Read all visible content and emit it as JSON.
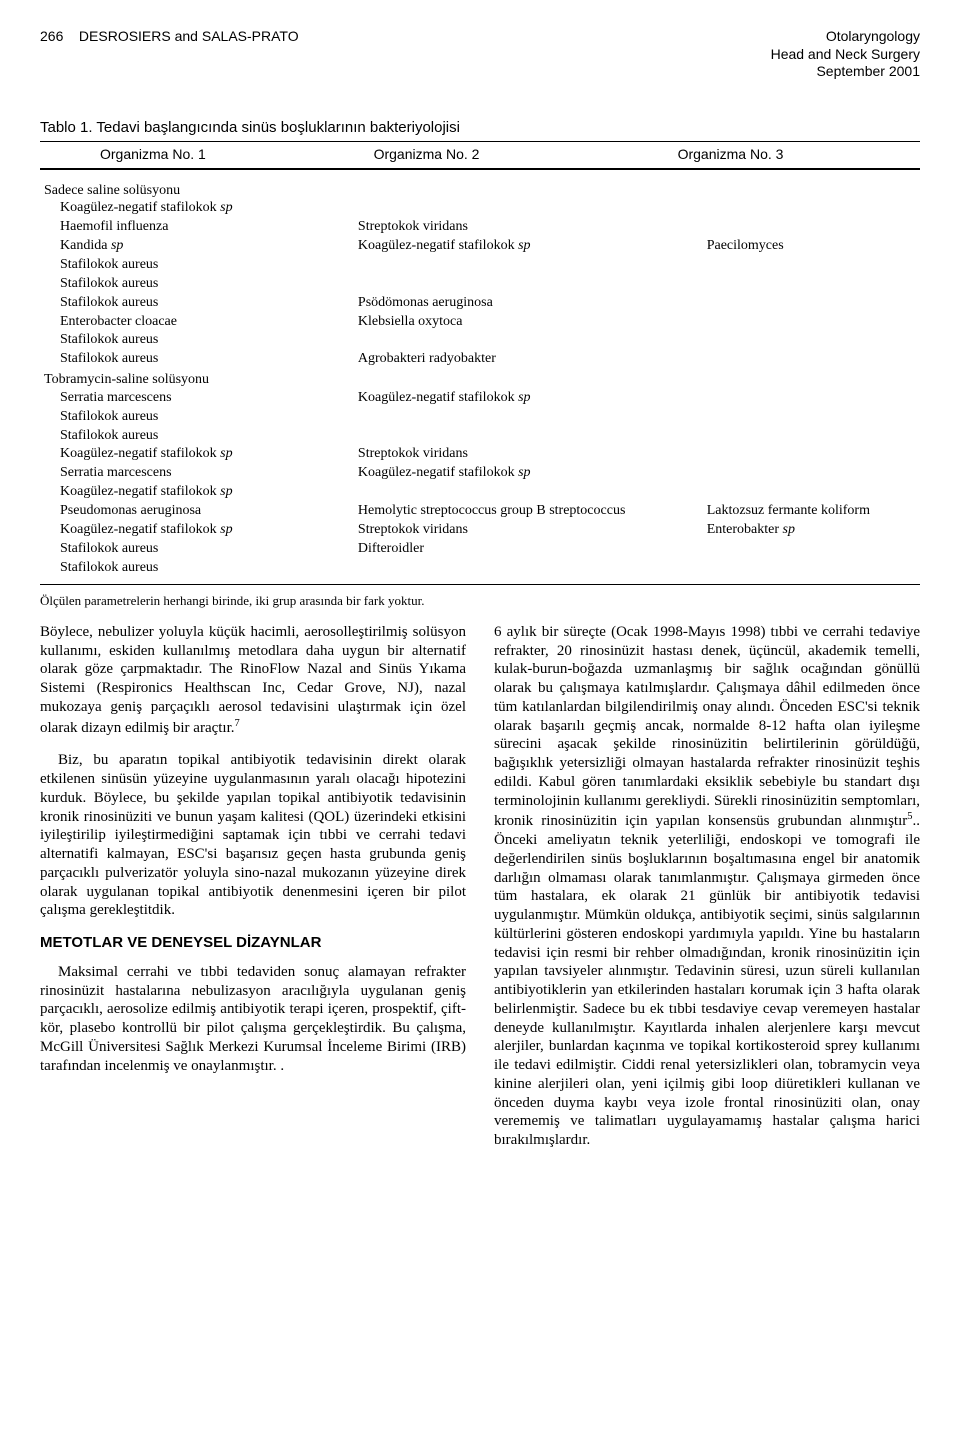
{
  "header": {
    "page_num": "266",
    "authors": "DESROSIERS and SALAS-PRATO",
    "journal_l1": "Otolaryngology",
    "journal_l2": "Head and Neck Surgery",
    "journal_l3": "September 2001"
  },
  "table": {
    "title": "Tablo 1. Tedavi başlangıcında sinüs boşluklarının bakteriyolojisi",
    "head_c1": "Organizma No. 1",
    "head_c2": "Organizma No. 2",
    "head_c3": "Organizma No. 3",
    "group1_label": "Sadece saline solüsyonu",
    "group1_rows": [
      {
        "c1": "Koagülez-negatif stafilokok sp",
        "c2": "",
        "c3": ""
      },
      {
        "c1": "Haemofil influenza",
        "c2": "Streptokok viridans",
        "c3": ""
      },
      {
        "c1": "Kandida sp",
        "c2": "Koagülez-negatif stafilokok sp",
        "c3": "Paecilomyces"
      },
      {
        "c1": "Stafilokok aureus",
        "c2": "",
        "c3": ""
      },
      {
        "c1": "Stafilokok aureus",
        "c2": "",
        "c3": ""
      },
      {
        "c1": "Stafilokok aureus",
        "c2": "Psödömonas aeruginosa",
        "c3": ""
      },
      {
        "c1": "Enterobacter cloacae",
        "c2": "Klebsiella oxytoca",
        "c3": ""
      },
      {
        "c1": "Stafilokok aureus",
        "c2": "",
        "c3": ""
      },
      {
        "c1": "Stafilokok aureus",
        "c2": "Agrobakteri radyobakter",
        "c3": ""
      }
    ],
    "group2_label": "Tobramycin-saline solüsyonu",
    "group2_rows": [
      {
        "c1": "Serratia marcescens",
        "c2": "Koagülez-negatif stafilokok sp",
        "c3": ""
      },
      {
        "c1": "Stafilokok aureus",
        "c2": "",
        "c3": ""
      },
      {
        "c1": "Stafilokok aureus",
        "c2": "",
        "c3": ""
      },
      {
        "c1": "Koagülez-negatif stafilokok sp",
        "c2": "Streptokok viridans",
        "c3": ""
      },
      {
        "c1": "Serratia marcescens",
        "c2": "Koagülez-negatif stafilokok sp",
        "c3": ""
      },
      {
        "c1": "Koagülez-negatif stafilokok sp",
        "c2": "",
        "c3": ""
      },
      {
        "c1": "Pseudomonas aeruginosa",
        "c2": "Hemolytic streptococcus group B streptococcus",
        "c3": "Laktozsuz fermante koliform"
      },
      {
        "c1": "Koagülez-negatif stafilokok sp",
        "c2": "Streptokok viridans",
        "c3": "Enterobakter sp"
      },
      {
        "c1": "Stafilokok aureus",
        "c2": "Difteroidler",
        "c3": ""
      },
      {
        "c1": "Stafilokok aureus",
        "c2": "",
        "c3": ""
      }
    ],
    "footnote": "Ölçülen parametrelerin herhangi birinde, iki grup arasında bir fark yoktur."
  },
  "body": {
    "left": {
      "p1_a": "Böylece, nebulizer yoluyla küçük hacimli, aerosolleştirilmiş solüsyon kullanımı, eskiden kullanılmış metodlara daha uygun bir alternatif olarak göze çarpmaktadır. The RinoFlow Nazal and Sinüs Yıkama Sistemi (Respironics Healthscan Inc, Cedar Grove, NJ), nazal mukozaya geniş parçaçıklı aerosol tedavisini ulaştırmak için özel olarak dizayn edilmiş bir araçtır.",
      "p1_sup": "7",
      "p2": "Biz, bu aparatın topikal antibiyotik tedavisinin direkt olarak etkilenen sinüsün yüzeyine uygulanmasının yaralı olacağı hipotezini kurduk. Böylece, bu şekilde yapılan topikal antibiyotik tedavisinin kronik rinosinüziti ve bunun yaşam kalitesi (QOL) üzerindeki etkisini iyileştirilip iyileştirmediğini saptamak için tıbbi ve cerrahi tedavi alternatifi kalmayan, ESC'si başarısız geçen hasta grubunda geniş parçacıklı pulverizatör yoluyla sino-nazal mukozanın yüzeyine direk olarak uygulanan topikal antibiyotik denenmesini içeren bir pilot çalışma gerekleştitdik.",
      "h1": "METOTLAR VE DENEYSEL DİZAYNLAR",
      "p3": "Maksimal cerrahi ve tıbbi tedaviden sonuç alamayan refrakter rinosinüzit hastalarına nebulizasyon aracılığıyla uygulanan geniş parçacıklı, aerosolize edilmiş antibiyotik terapi içeren, prospektif, çift-kör, plasebo kontrollü bir pilot çalışma gerçekleştirdik. Bu çalışma, McGill Üniversitesi Sağlık Merkezi Kurumsal İnceleme Birimi (IRB) tarafından incelenmiş ve onaylanmıştır. ."
    },
    "right": {
      "p1_a": "6 aylık bir süreçte (Ocak 1998-Mayıs 1998) tıbbi ve cerrahi tedaviye refrakter, 20 rinosinüzit hastası denek, üçüncül, akademik temelli, kulak-burun-boğazda uzmanlaşmış bir sağlık ocağından gönüllü olarak bu çalışmaya katılmışlardır. Çalışmaya dâhil edilmeden önce tüm katılanlardan bilgilendirilmiş onay alındı. Önceden ESC'si teknik olarak başarılı geçmiş ancak, normalde 8-12 hafta olan iyileşme sürecini aşacak şekilde rinosinüzitin belirtilerinin görüldüğü, bağışıklık yetersizliği olmayan hastalarda refrakter rinosinüzit teşhis edildi. Kabul gören tanımlardaki eksiklik sebebiyle bu standart dışı terminolojinin kullanımı gerekliydi. Sürekli rinosinüzitin semptomları, kronik rinosinüzitin için yapılan konsensüs grubundan alınmıştır",
      "p1_sup": "5",
      "p1_b": ".. Önceki ameliyatın teknik yeterliliği, endoskopi ve tomografi ile değerlendirilen sinüs boşluklarının boşaltımasına engel bir anatomik darlığın olmaması olarak tanımlanmıştır. Çalışmaya girmeden önce tüm hastalara, ek olarak 21 günlük bir antibiyotik tedavisi uygulanmıştır. Mümkün oldukça, antibiyotik seçimi, sinüs salgılarının kültürlerini gösteren endoskopi yardımıyla yapıldı. Yine bu hastaların tedavisi için resmi bir rehber olmadığından, kronik rinosinüzitin için yapılan tavsiyeler alınmıştır. Tedavinin süresi, uzun süreli kullanılan antibiyotiklerin yan etkilerinden hastaları korumak için 3 hafta olarak belirlenmiştir. Sadece bu ek tıbbi tesdaviye cevap veremeyen hastalar deneyde kullanılmıştır. Kayıtlarda inhalen alerjenlere karşı mevcut alerjiler, bunlardan kaçınma ve topikal kortikosteroid sprey kullanımı ile tedavi edilmiştir. Ciddi renal yetersizlikleri olan, tobramycin veya kinine alerjileri olan, yeni içilmiş gibi loop diüretikleri kullanan ve önceden duyma kaybı veya izole frontal rinosinüziti olan, onay verememiş ve talimatları uygulayamamış hastalar çalışma harici bırakılmışlardır."
    }
  }
}
